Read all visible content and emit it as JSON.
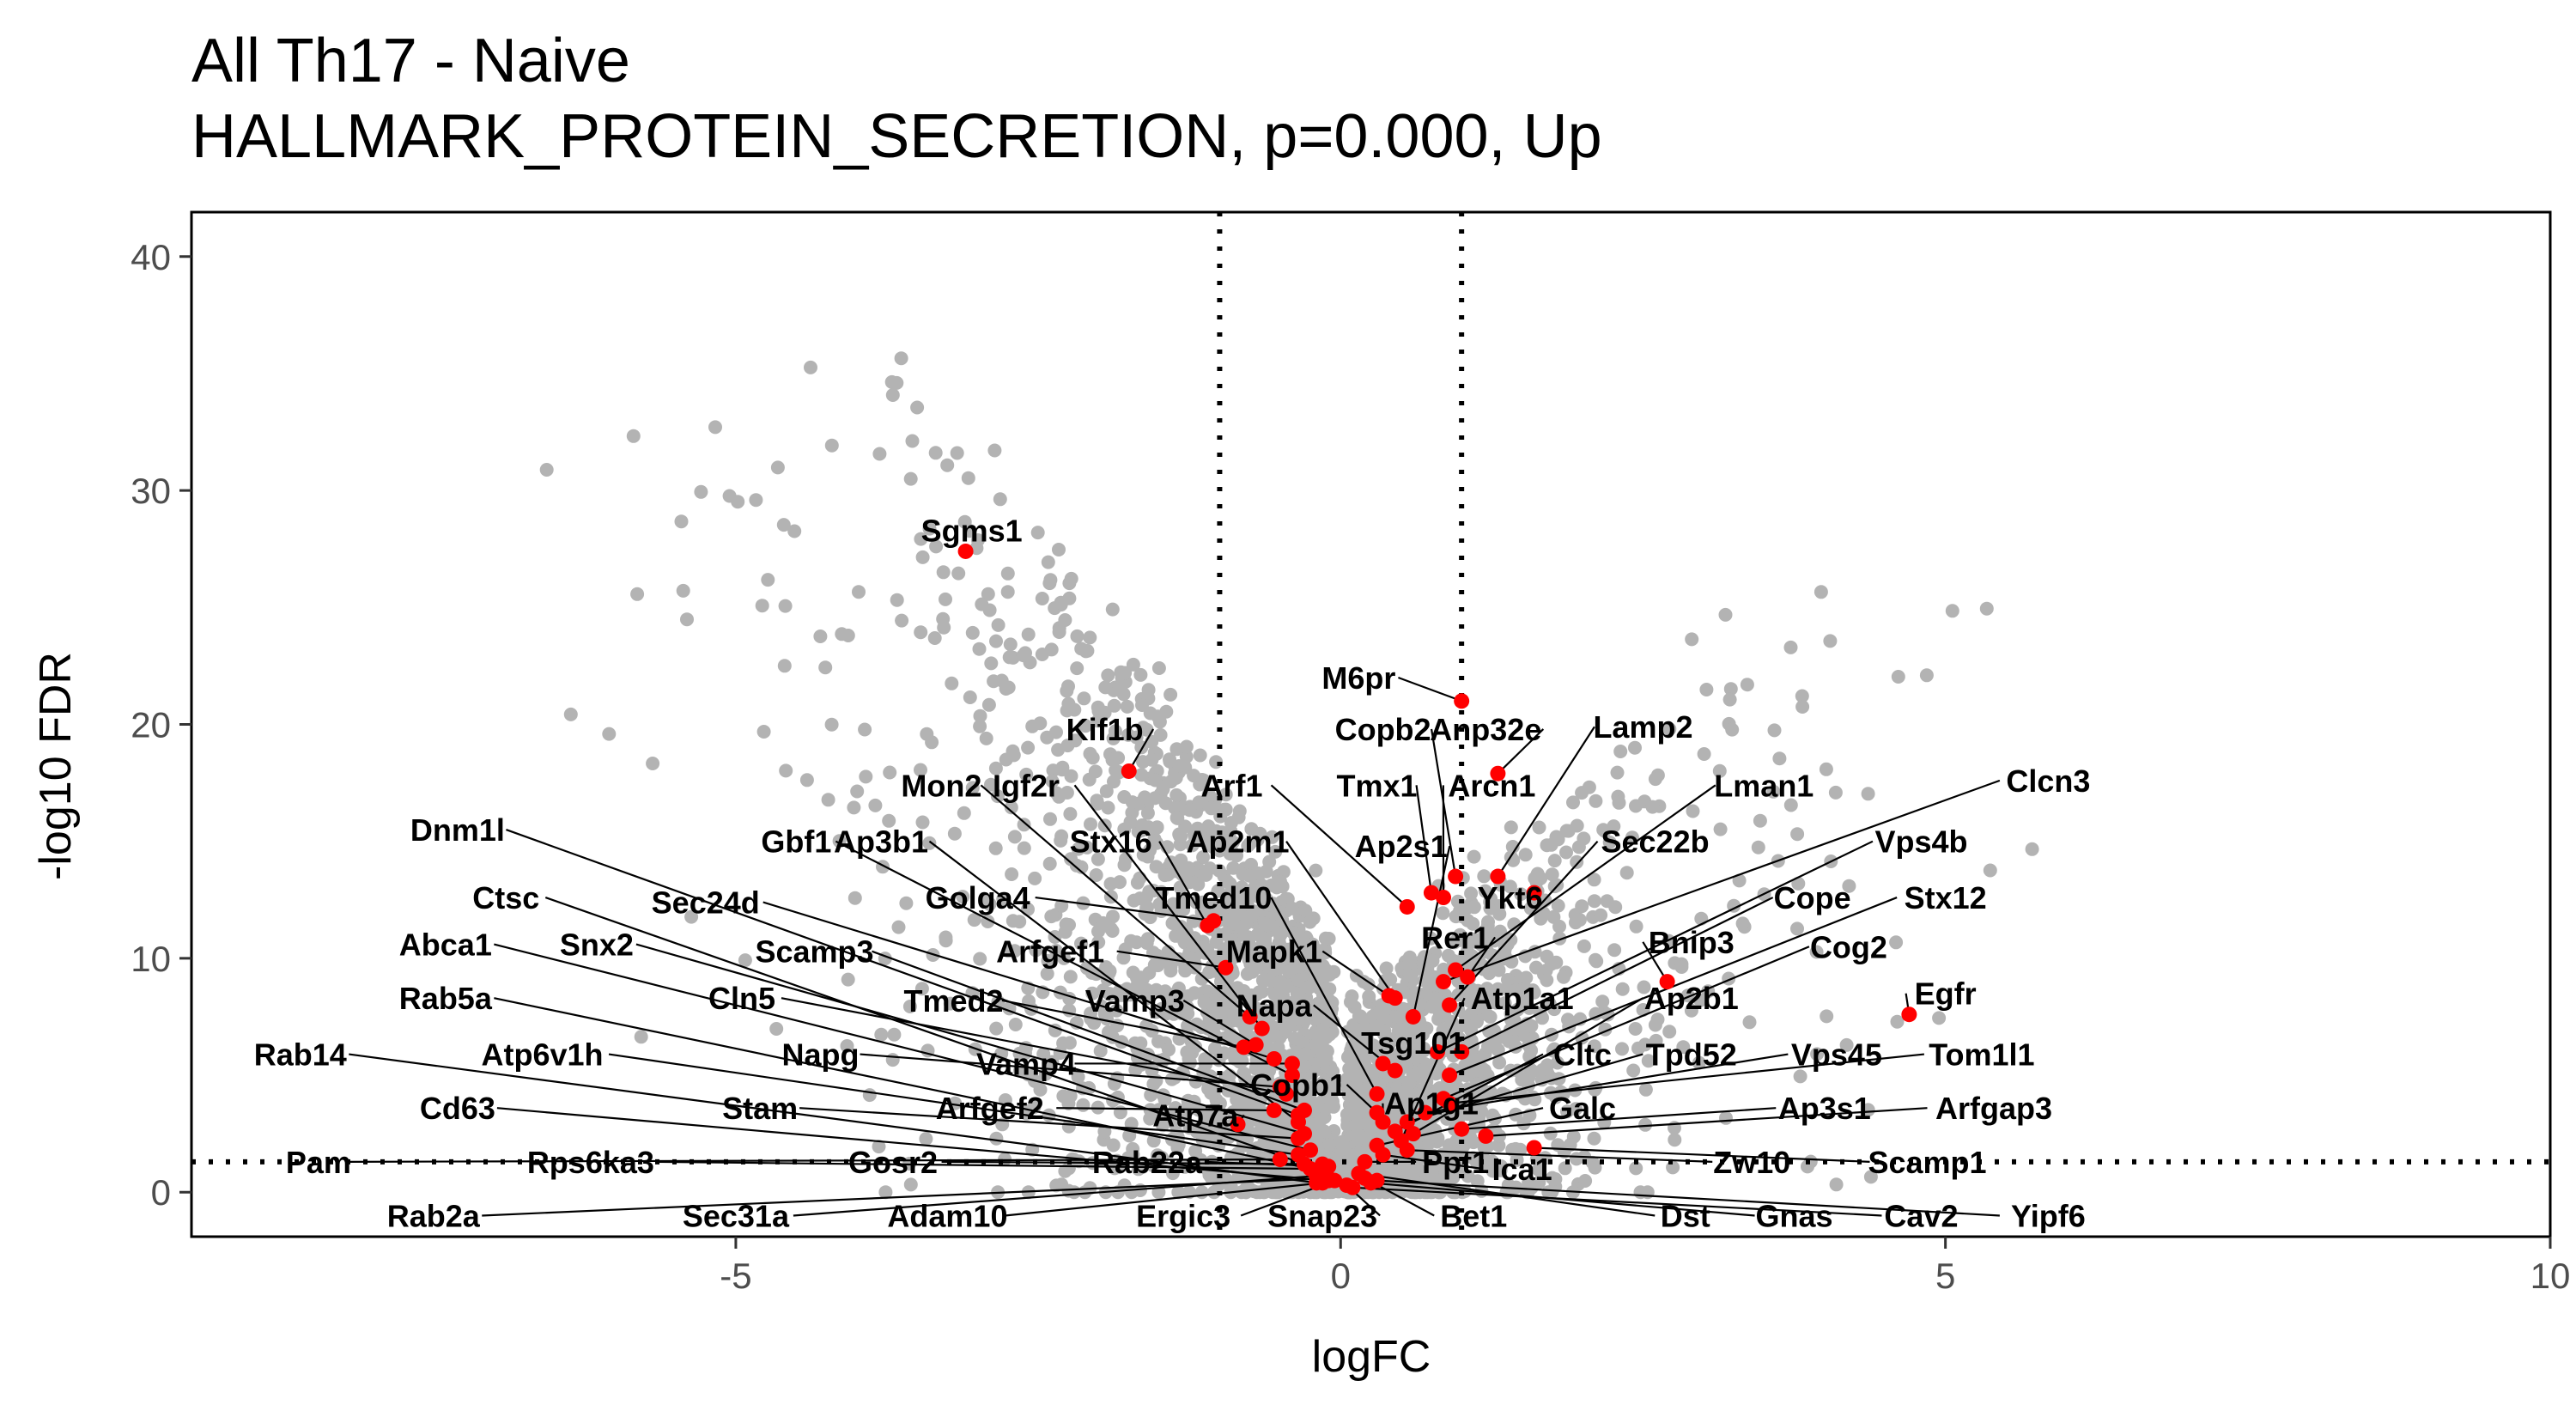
{
  "chart_data": {
    "type": "scatter",
    "title": "All Th17 - Naive",
    "subtitle": "HALLMARK_PROTEIN_SECRETION, p=0.000, Up",
    "xlabel": "logFC",
    "ylabel": "-log10 FDR",
    "xlim": [
      -9.5,
      10
    ],
    "ylim": [
      -1.9,
      41.9
    ],
    "xticks": [
      -5,
      0,
      5,
      10
    ],
    "yticks": [
      0,
      10,
      20,
      30,
      40
    ],
    "grid": false,
    "thresholds": {
      "logFC": [
        -1,
        1
      ],
      "neg_log10_fdr": 1.3
    },
    "colors": {
      "background_points": "#b3b3b3",
      "highlighted_points": "#ff0000",
      "labels": "#000000"
    },
    "background_points_note": "dense grey cloud of non-pathway genes",
    "highlighted_genes": [
      {
        "gene": "Sgms1",
        "x": -3.1,
        "y": 27.4,
        "lx": -3.05,
        "ly": 28.3
      },
      {
        "gene": "M6pr",
        "x": 1.0,
        "y": 21.0,
        "lx": 0.15,
        "ly": 22.0
      },
      {
        "gene": "Kif1b",
        "x": -1.75,
        "y": 18.0,
        "lx": -1.95,
        "ly": 19.8
      },
      {
        "gene": "Copb2",
        "x": 0.95,
        "y": 13.5,
        "lx": 0.35,
        "ly": 19.8
      },
      {
        "gene": "Anp32e",
        "x": 1.3,
        "y": 17.9,
        "lx": 1.2,
        "ly": 19.8
      },
      {
        "gene": "Lamp2",
        "x": 1.3,
        "y": 13.5,
        "lx": 2.5,
        "ly": 19.9
      },
      {
        "gene": "Mon2",
        "x": -0.75,
        "y": 7.5,
        "lx": -3.3,
        "ly": 17.4
      },
      {
        "gene": "Igf2r",
        "x": -0.65,
        "y": 7.0,
        "lx": -2.6,
        "ly": 17.4
      },
      {
        "gene": "Arf1",
        "x": 0.55,
        "y": 12.2,
        "lx": -0.9,
        "ly": 17.4
      },
      {
        "gene": "Tmx1",
        "x": 0.75,
        "y": 12.8,
        "lx": 0.3,
        "ly": 17.4
      },
      {
        "gene": "Arcn1",
        "x": 0.85,
        "y": 12.6,
        "lx": 1.25,
        "ly": 17.4
      },
      {
        "gene": "Lman1",
        "x": 0.95,
        "y": 9.5,
        "lx": 3.5,
        "ly": 17.4
      },
      {
        "gene": "Clcn3",
        "x": 0.85,
        "y": 9.0,
        "lx": 5.85,
        "ly": 17.6
      },
      {
        "gene": "Dnm1l",
        "x": -0.35,
        "y": 3.3,
        "lx": -7.3,
        "ly": 15.5
      },
      {
        "gene": "Gbf1",
        "x": -0.4,
        "y": 5.0,
        "lx": -4.5,
        "ly": 15.0
      },
      {
        "gene": "Ap3b1",
        "x": -0.35,
        "y": 3.0,
        "lx": -3.8,
        "ly": 15.0
      },
      {
        "gene": "Stx16",
        "x": -1.1,
        "y": 11.4,
        "lx": -1.9,
        "ly": 15.0
      },
      {
        "gene": "Ap2m1",
        "x": 0.45,
        "y": 8.3,
        "lx": -0.85,
        "ly": 15.0
      },
      {
        "gene": "Ap2s1",
        "x": 0.6,
        "y": 7.5,
        "lx": 0.5,
        "ly": 14.8
      },
      {
        "gene": "Sec22b",
        "x": 0.9,
        "y": 8.0,
        "lx": 2.6,
        "ly": 15.0
      },
      {
        "gene": "Vps4b",
        "x": 0.8,
        "y": 6.0,
        "lx": 4.8,
        "ly": 15.0
      },
      {
        "gene": "Ctsc",
        "x": -0.3,
        "y": 1.2,
        "lx": -6.9,
        "ly": 12.6
      },
      {
        "gene": "Sec24d",
        "x": -0.55,
        "y": 5.7,
        "lx": -5.25,
        "ly": 12.4
      },
      {
        "gene": "Golga4",
        "x": -1.05,
        "y": 11.6,
        "lx": -3.0,
        "ly": 12.6
      },
      {
        "gene": "Tmed10",
        "x": 0.3,
        "y": 4.2,
        "lx": -1.05,
        "ly": 12.6
      },
      {
        "gene": "Ykt6",
        "x": 1.6,
        "y": 12.8,
        "lx": 1.4,
        "ly": 12.6
      },
      {
        "gene": "Cope",
        "x": 1.0,
        "y": 6.0,
        "lx": 3.9,
        "ly": 12.6
      },
      {
        "gene": "Stx12",
        "x": 0.9,
        "y": 5.0,
        "lx": 5.0,
        "ly": 12.6
      },
      {
        "gene": "Abca1",
        "x": -0.25,
        "y": 1.8,
        "lx": -7.4,
        "ly": 10.6
      },
      {
        "gene": "Snx2",
        "x": -0.3,
        "y": 2.5,
        "lx": -6.15,
        "ly": 10.6
      },
      {
        "gene": "Scamp3",
        "x": -0.3,
        "y": 3.5,
        "lx": -4.35,
        "ly": 10.3
      },
      {
        "gene": "Arfgef1",
        "x": -0.95,
        "y": 9.6,
        "lx": -2.4,
        "ly": 10.3
      },
      {
        "gene": "Mapk1",
        "x": 0.4,
        "y": 8.4,
        "lx": -0.55,
        "ly": 10.3
      },
      {
        "gene": "Rer1",
        "x": 1.05,
        "y": 9.2,
        "lx": 0.95,
        "ly": 10.9
      },
      {
        "gene": "Bnip3",
        "x": 2.7,
        "y": 9.0,
        "lx": 2.9,
        "ly": 10.7
      },
      {
        "gene": "Cog2",
        "x": 0.85,
        "y": 4.0,
        "lx": 4.2,
        "ly": 10.5
      },
      {
        "gene": "Rab5a",
        "x": -0.15,
        "y": 0.9,
        "lx": -7.4,
        "ly": 8.3
      },
      {
        "gene": "Cln5",
        "x": -0.45,
        "y": 4.2,
        "lx": -4.95,
        "ly": 8.3
      },
      {
        "gene": "Tmed2",
        "x": -0.8,
        "y": 6.2,
        "lx": -3.2,
        "ly": 8.2
      },
      {
        "gene": "Vamp3",
        "x": -0.7,
        "y": 6.3,
        "lx": -1.7,
        "ly": 8.2
      },
      {
        "gene": "Napa",
        "x": 0.45,
        "y": 5.2,
        "lx": -0.55,
        "ly": 8.0
      },
      {
        "gene": "Atp1a1",
        "x": 0.5,
        "y": 2.2,
        "lx": 1.5,
        "ly": 8.3
      },
      {
        "gene": "Ap2b1",
        "x": 0.6,
        "y": 2.5,
        "lx": 2.9,
        "ly": 8.3
      },
      {
        "gene": "Egfr",
        "x": 4.7,
        "y": 7.6,
        "lx": 5.0,
        "ly": 8.5
      },
      {
        "gene": "Tsg101",
        "x": 0.35,
        "y": 5.5,
        "lx": 0.6,
        "ly": 6.4
      },
      {
        "gene": "Rab14",
        "x": -0.2,
        "y": 0.4,
        "lx": -8.6,
        "ly": 5.9
      },
      {
        "gene": "Atp6v1h",
        "x": -0.35,
        "y": 1.6,
        "lx": -6.6,
        "ly": 5.9
      },
      {
        "gene": "Napg",
        "x": -0.5,
        "y": 4.5,
        "lx": -4.3,
        "ly": 5.9
      },
      {
        "gene": "Vamp4",
        "x": -0.4,
        "y": 5.5,
        "lx": -2.6,
        "ly": 5.5
      },
      {
        "gene": "Cltc",
        "x": 0.45,
        "y": 2.6,
        "lx": 2.0,
        "ly": 5.9
      },
      {
        "gene": "Tpd52",
        "x": 0.55,
        "y": 3.0,
        "lx": 2.9,
        "ly": 5.9
      },
      {
        "gene": "Vps45",
        "x": 0.7,
        "y": 3.4,
        "lx": 4.1,
        "ly": 5.9
      },
      {
        "gene": "Tom1l1",
        "x": 0.9,
        "y": 3.8,
        "lx": 5.3,
        "ly": 5.9
      },
      {
        "gene": "Copb1",
        "x": 0.3,
        "y": 3.4,
        "lx": -0.35,
        "ly": 4.6
      },
      {
        "gene": "Cd63",
        "x": -0.1,
        "y": 0.5,
        "lx": -7.3,
        "ly": 3.6
      },
      {
        "gene": "Stam",
        "x": -0.35,
        "y": 2.3,
        "lx": -4.8,
        "ly": 3.6
      },
      {
        "gene": "Arfgef2",
        "x": -0.55,
        "y": 3.5,
        "lx": -2.9,
        "ly": 3.6
      },
      {
        "gene": "Atp7a",
        "x": -0.85,
        "y": 2.9,
        "lx": -1.2,
        "ly": 3.3
      },
      {
        "gene": "Ap1g1",
        "x": 0.35,
        "y": 3.0,
        "lx": 0.75,
        "ly": 3.8
      },
      {
        "gene": "Galc",
        "x": 0.3,
        "y": 2.0,
        "lx": 2.0,
        "ly": 3.6
      },
      {
        "gene": "Ap3s1",
        "x": 1.0,
        "y": 2.7,
        "lx": 4.0,
        "ly": 3.6
      },
      {
        "gene": "Arfgap3",
        "x": 1.2,
        "y": 2.4,
        "lx": 5.4,
        "ly": 3.6
      },
      {
        "gene": "Pam",
        "x": -0.5,
        "y": 1.4,
        "lx": -8.45,
        "ly": 1.3
      },
      {
        "gene": "Rps6ka3",
        "x": -0.25,
        "y": 1.0,
        "lx": -6.2,
        "ly": 1.3
      },
      {
        "gene": "Gosr2",
        "x": -0.15,
        "y": 1.2,
        "lx": -3.7,
        "ly": 1.3
      },
      {
        "gene": "Rab22a",
        "x": -0.1,
        "y": 1.1,
        "lx": -1.6,
        "ly": 1.3
      },
      {
        "gene": "Ppt1",
        "x": 0.2,
        "y": 1.3,
        "lx": 0.95,
        "ly": 1.3
      },
      {
        "gene": "Ica1",
        "x": 0.35,
        "y": 1.6,
        "lx": 1.5,
        "ly": 1.0
      },
      {
        "gene": "Zw10",
        "x": 0.55,
        "y": 1.8,
        "lx": 3.4,
        "ly": 1.3
      },
      {
        "gene": "Scamp1",
        "x": 1.6,
        "y": 1.9,
        "lx": 4.85,
        "ly": 1.3
      },
      {
        "gene": "Rab2a",
        "x": -0.1,
        "y": 0.6,
        "lx": -7.5,
        "ly": -1.0
      },
      {
        "gene": "Sec31a",
        "x": -0.2,
        "y": 0.7,
        "lx": -5.0,
        "ly": -1.0
      },
      {
        "gene": "Adam10",
        "x": -0.15,
        "y": 0.4,
        "lx": -3.25,
        "ly": -1.0
      },
      {
        "gene": "Ergic3",
        "x": -0.05,
        "y": 0.5,
        "lx": -1.3,
        "ly": -1.0
      },
      {
        "gene": "Snap23",
        "x": 0.05,
        "y": 0.3,
        "lx": -0.15,
        "ly": -1.0
      },
      {
        "gene": "Bet1",
        "x": 0.2,
        "y": 0.6,
        "lx": 1.1,
        "ly": -1.0
      },
      {
        "gene": "Dst",
        "x": 0.15,
        "y": 0.8,
        "lx": 2.85,
        "ly": -1.0
      },
      {
        "gene": "Gnas",
        "x": 0.25,
        "y": 0.4,
        "lx": 3.75,
        "ly": -1.0
      },
      {
        "gene": "Cav2",
        "x": 0.1,
        "y": 0.2,
        "lx": 4.8,
        "ly": -1.0
      },
      {
        "gene": "Yipf6",
        "x": 0.3,
        "y": 0.5,
        "lx": 5.85,
        "ly": -1.0
      }
    ]
  }
}
